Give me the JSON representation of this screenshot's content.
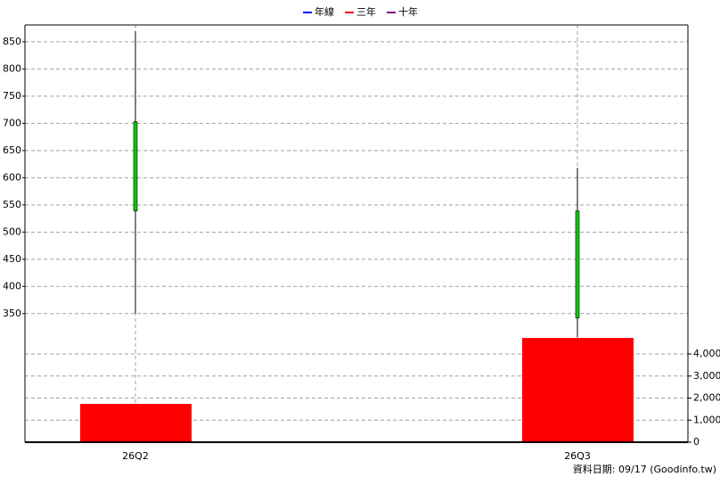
{
  "chart_data": {
    "type": "candlestick",
    "legend": [
      {
        "name": "年線",
        "color": "#0000ff"
      },
      {
        "name": "三年",
        "color": "#ff0000"
      },
      {
        "name": "十年",
        "color": "#800080"
      }
    ],
    "categories": [
      "26Q2",
      "26Q3"
    ],
    "open": [
      703,
      539
    ],
    "high": [
      870,
      618
    ],
    "low": [
      350,
      307
    ],
    "close": [
      539,
      342
    ],
    "up_color": "#ff0000",
    "down_color": "#00cc00",
    "ylim": [
      307,
      881
    ],
    "yticks": [
      350,
      400,
      450,
      500,
      550,
      600,
      650,
      700,
      750,
      800,
      850
    ],
    "volume": {
      "values": [
        1737,
        4727
      ],
      "color": "#ff0000",
      "y2lim": [
        0,
        4770
      ],
      "y2ticks": [
        0,
        {
          "value": 1000,
          "label": "1,000"
        },
        {
          "value": 2000,
          "label": "2,000"
        },
        {
          "value": 3000,
          "label": "3,000"
        },
        {
          "value": 4000,
          "label": "4,000"
        }
      ]
    },
    "grid": true,
    "source": "資料日期: 09/17  (Goodinfo.tw)"
  }
}
